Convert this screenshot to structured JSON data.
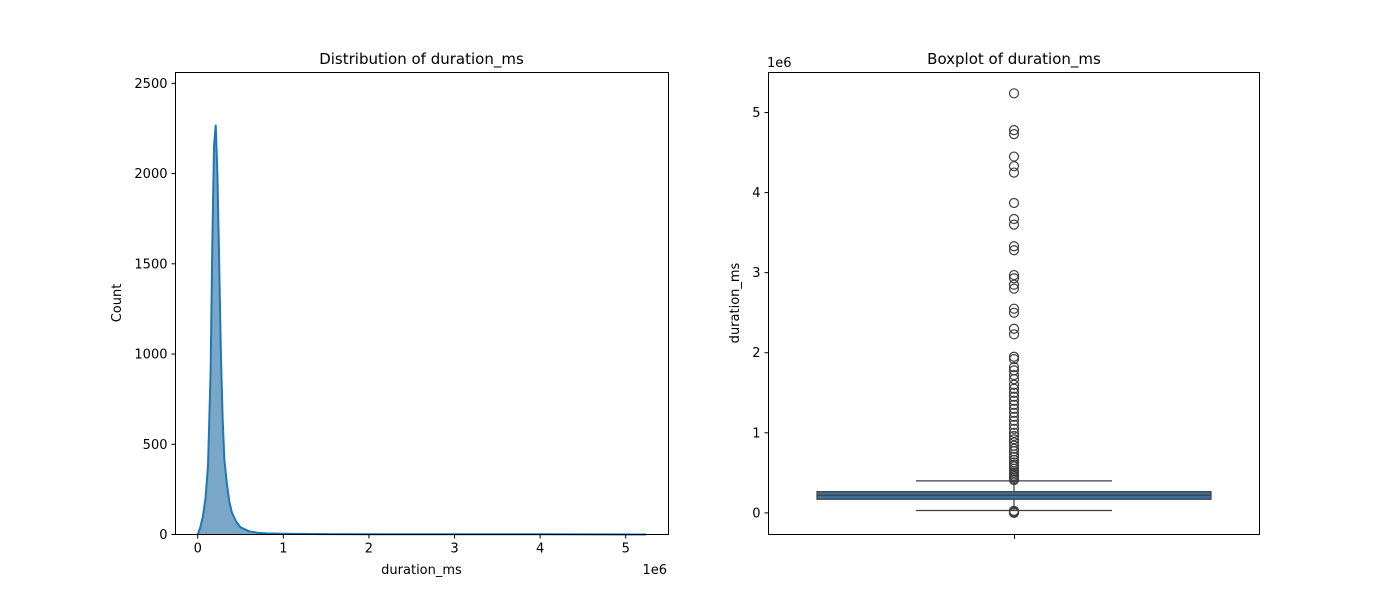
{
  "chart_data": [
    {
      "type": "histogram",
      "title": "Distribution of duration_ms",
      "xlabel": "duration_ms",
      "ylabel": "Count",
      "x_offset_label": "1e6",
      "xlim": [
        -0.26,
        5.5
      ],
      "ylim": [
        0,
        2560
      ],
      "xticks": [
        0,
        1,
        2,
        3,
        4,
        5
      ],
      "yticks": [
        0,
        500,
        1000,
        1500,
        2000,
        2500
      ],
      "color": "#1f77b4",
      "fill_color": "#7aa6c8",
      "series": [
        {
          "x": [
            0.0,
            0.03,
            0.06,
            0.09,
            0.12,
            0.15,
            0.17,
            0.19,
            0.21,
            0.23,
            0.25,
            0.27,
            0.29,
            0.31,
            0.34,
            0.37,
            0.4,
            0.45,
            0.5,
            0.6,
            0.7,
            0.8,
            1.0,
            1.5,
            2.0,
            3.0,
            4.0,
            5.24
          ],
          "y": [
            0,
            40,
            100,
            200,
            380,
            900,
            1600,
            2150,
            2270,
            2000,
            1500,
            1000,
            650,
            420,
            280,
            180,
            120,
            70,
            40,
            18,
            10,
            6,
            4,
            2,
            1,
            1,
            1,
            0
          ]
        }
      ]
    },
    {
      "type": "boxplot",
      "title": "Boxplot of duration_ms",
      "xlabel": "",
      "ylabel": "duration_ms",
      "y_offset_label": "1e6",
      "ylim": [
        -0.27,
        5.5
      ],
      "yticks": [
        0,
        1,
        2,
        3,
        4,
        5
      ],
      "color": "#3a6f9e",
      "box": {
        "whisker_low": 0.03,
        "q1": 0.17,
        "median": 0.22,
        "q3": 0.265,
        "whisker_high": 0.4
      },
      "outliers": [
        0.0,
        0.005,
        0.01,
        0.015,
        0.02,
        0.025,
        0.41,
        0.42,
        0.44,
        0.46,
        0.48,
        0.5,
        0.52,
        0.55,
        0.58,
        0.6,
        0.63,
        0.66,
        0.7,
        0.73,
        0.77,
        0.8,
        0.84,
        0.88,
        0.92,
        0.96,
        1.0,
        1.05,
        1.1,
        1.15,
        1.2,
        1.25,
        1.3,
        1.35,
        1.4,
        1.45,
        1.5,
        1.55,
        1.6,
        1.67,
        1.72,
        1.78,
        1.82,
        1.92,
        1.95,
        2.23,
        2.3,
        2.5,
        2.55,
        2.8,
        2.85,
        2.93,
        2.97,
        3.28,
        3.33,
        3.6,
        3.67,
        3.87,
        4.25,
        4.33,
        4.45,
        4.73,
        4.78,
        5.24
      ]
    }
  ]
}
